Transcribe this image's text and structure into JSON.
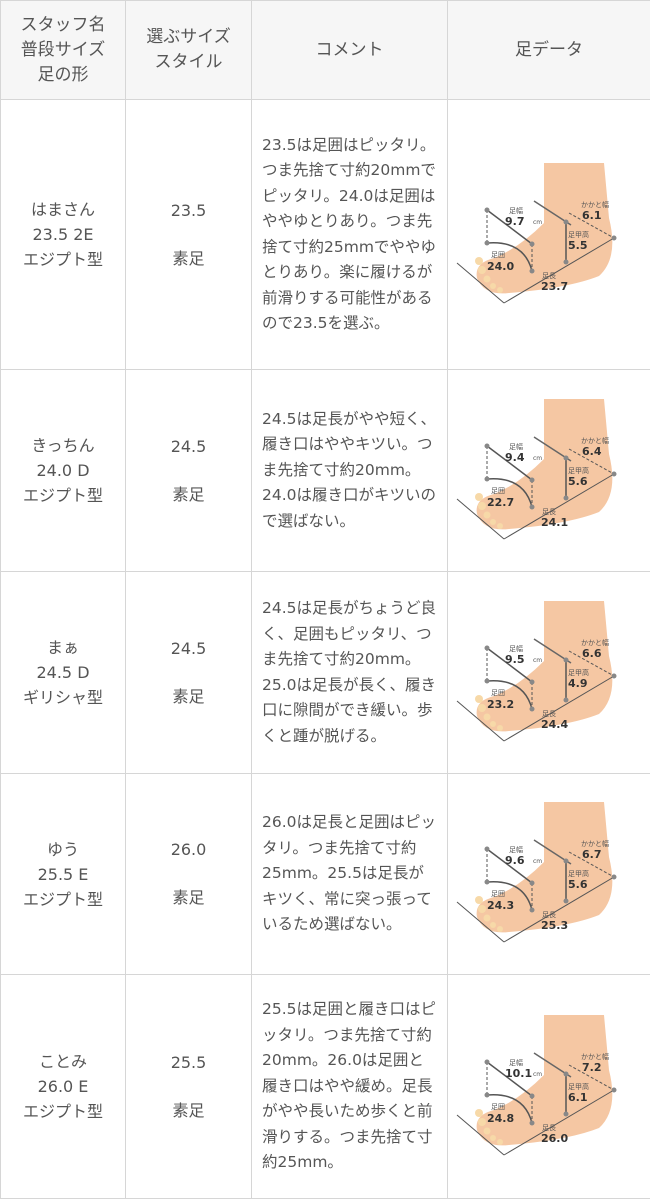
{
  "header": {
    "col1": "スタッフ名\n普段サイズ\n足の形",
    "col2": "選ぶサイズ\nスタイル",
    "col3": "コメント",
    "col4": "足データ"
  },
  "labels": {
    "width": "足幅",
    "girth": "足囲",
    "length": "足長",
    "heel": "かかと幅",
    "instep": "足甲高",
    "unit": "cm"
  },
  "rows": [
    {
      "name": "はまさん",
      "usual": "23.5 2E",
      "shape": "エジプト型",
      "size": "23.5",
      "style": "素足",
      "comment": "23.5は足囲はピッタリ。つま先捨て寸約20mmでピッタリ。24.0は足囲はややゆとりあり。つま先捨て寸約25mmでややゆとりあり。楽に履けるが前滑りする可能性があるので23.5を選ぶ。",
      "foot": {
        "width": "9.7",
        "girth": "24.0",
        "length": "23.7",
        "heel": "6.1",
        "instep": "5.5"
      }
    },
    {
      "name": "きっちん",
      "usual": "24.0 D",
      "shape": "エジプト型",
      "size": "24.5",
      "style": "素足",
      "comment": "24.5は足長がやや短く、履き口はややキツい。つま先捨て寸約20mm。24.0は履き口がキツいので選ばない。",
      "foot": {
        "width": "9.4",
        "girth": "22.7",
        "length": "24.1",
        "heel": "6.4",
        "instep": "5.6"
      }
    },
    {
      "name": "まぁ",
      "usual": "24.5 D",
      "shape": "ギリシャ型",
      "size": "24.5",
      "style": "素足",
      "comment": "24.5は足長がちょうど良く、足囲もピッタリ、つま先捨て寸約20mm。25.0は足長が長く、履き口に隙間ができ緩い。歩くと踵が脱げる。",
      "foot": {
        "width": "9.5",
        "girth": "23.2",
        "length": "24.4",
        "heel": "6.6",
        "instep": "4.9"
      }
    },
    {
      "name": "ゆう",
      "usual": "25.5 E",
      "shape": "エジプト型",
      "size": "26.0",
      "style": "素足",
      "comment": "26.0は足長と足囲はピッタリ。つま先捨て寸約25mm。25.5は足長がキツく、常に突っ張っているため選ばない。",
      "foot": {
        "width": "9.6",
        "girth": "24.3",
        "length": "25.3",
        "heel": "6.7",
        "instep": "5.6"
      }
    },
    {
      "name": "ことみ",
      "usual": "26.0 E",
      "shape": "エジプト型",
      "size": "25.5",
      "style": "素足",
      "comment": "25.5は足囲と履き口はピッタリ。つま先捨て寸約20mm。26.0は足囲と履き口はやや緩め。足長がやや長いため歩くと前滑りする。つま先捨て寸約25mm。",
      "foot": {
        "width": "10.1",
        "girth": "24.8",
        "length": "26.0",
        "heel": "7.2",
        "instep": "6.1"
      }
    }
  ]
}
